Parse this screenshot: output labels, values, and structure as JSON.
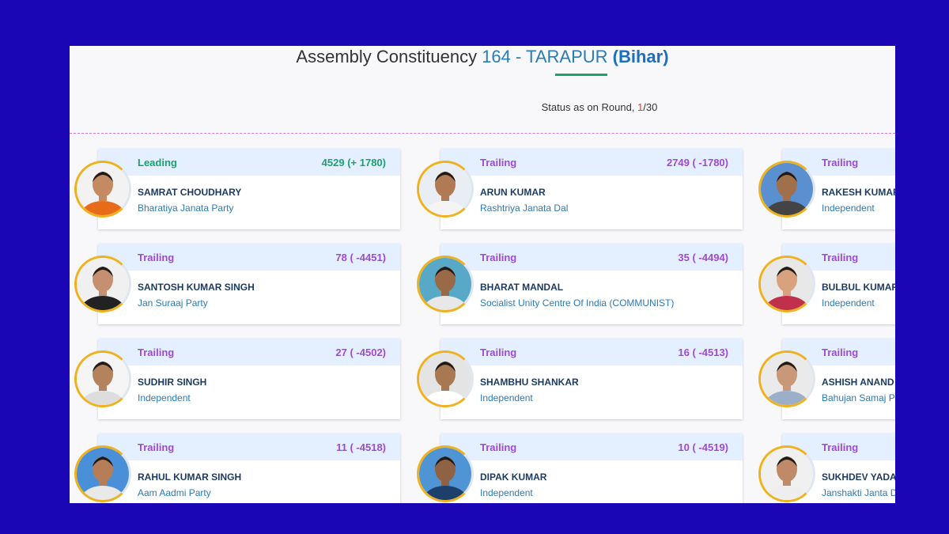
{
  "header": {
    "title_prefix": "Assembly Constituency ",
    "title_number": "164 - TARAPUR",
    "title_state": "(Bihar)",
    "status_label": "Status as on Round, ",
    "round_current": "1",
    "round_total": "/30"
  },
  "colors": {
    "background": "#1a06b4",
    "leading": "#1aa36a",
    "trailing": "#a04ad4",
    "party": "#2b7bb9",
    "name": "#1c3a5e"
  },
  "candidates": [
    {
      "status": "Leading",
      "votes": "4529 (+ 1780)",
      "name": "SAMRAT CHOUDHARY",
      "party": "Bharatiya Janata Party"
    },
    {
      "status": "Trailing",
      "votes": "2749 ( -1780)",
      "name": "ARUN KUMAR",
      "party": "Rashtriya Janata Dal"
    },
    {
      "status": "Trailing",
      "votes": "",
      "name": "RAKESH KUMAR",
      "party": "Independent"
    },
    {
      "status": "Trailing",
      "votes": "78 ( -4451)",
      "name": "SANTOSH KUMAR SINGH",
      "party": "Jan Suraaj Party"
    },
    {
      "status": "Trailing",
      "votes": "35 ( -4494)",
      "name": "BHARAT MANDAL",
      "party": "Socialist Unity Centre Of India (COMMUNIST)"
    },
    {
      "status": "Trailing",
      "votes": "",
      "name": "BULBUL KUMARI",
      "party": "Independent"
    },
    {
      "status": "Trailing",
      "votes": "27 ( -4502)",
      "name": "SUDHIR SINGH",
      "party": "Independent"
    },
    {
      "status": "Trailing",
      "votes": "16 ( -4513)",
      "name": "SHAMBHU SHANKAR",
      "party": "Independent"
    },
    {
      "status": "Trailing",
      "votes": "",
      "name": "ASHISH ANAND",
      "party": "Bahujan Samaj Party"
    },
    {
      "status": "Trailing",
      "votes": "11 ( -4518)",
      "name": "RAHUL KUMAR SINGH",
      "party": "Aam Aadmi Party"
    },
    {
      "status": "Trailing",
      "votes": "10 ( -4519)",
      "name": "DIPAK KUMAR",
      "party": "Independent"
    },
    {
      "status": "Trailing",
      "votes": "",
      "name": "SUKHDEV YADAV",
      "party": "Janshakti Janta Dal"
    }
  ]
}
